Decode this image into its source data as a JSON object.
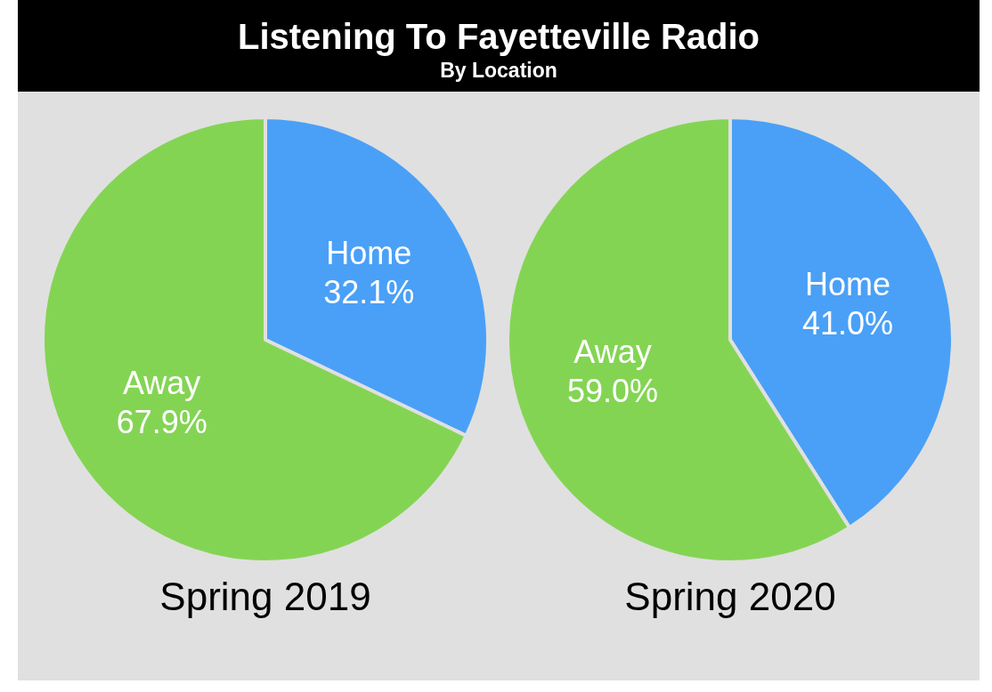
{
  "chart_data": [
    {
      "type": "pie",
      "title": "Listening To Fayetteville Radio",
      "subtitle": "By Location",
      "xlabel": "Spring 2019",
      "categories": [
        "Home",
        "Away"
      ],
      "values": [
        32.1,
        67.9
      ],
      "colors": [
        "#4aa0f7",
        "#84d454"
      ],
      "value_labels": [
        "32.1%",
        "67.9%"
      ],
      "legend": false
    },
    {
      "type": "pie",
      "xlabel": "Spring 2020",
      "categories": [
        "Home",
        "Away"
      ],
      "values": [
        41.0,
        59.0
      ],
      "colors": [
        "#4aa0f7",
        "#84d454"
      ],
      "value_labels": [
        "41.0%",
        "59.0%"
      ],
      "legend": false
    }
  ]
}
